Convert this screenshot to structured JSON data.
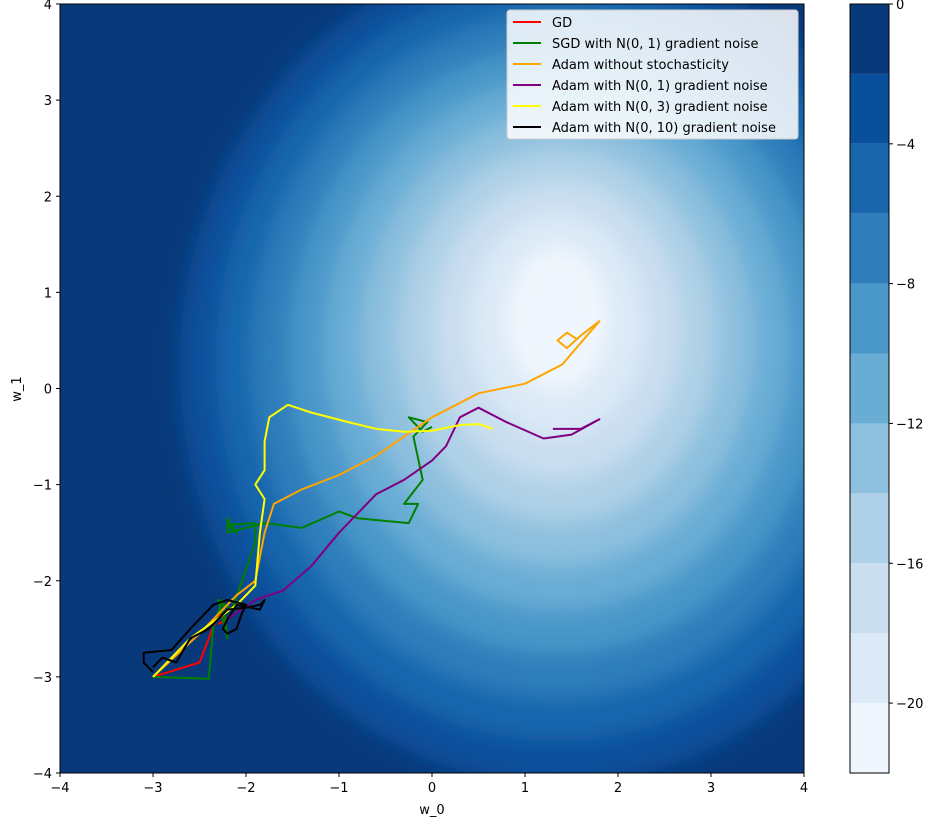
{
  "chart_data": {
    "type": "line",
    "xlabel": "w_0",
    "ylabel": "w_1",
    "xlim": [
      -4,
      4
    ],
    "ylim": [
      -4,
      4
    ],
    "x_ticks": [
      -4,
      -3,
      -2,
      -1,
      0,
      1,
      2,
      3,
      4
    ],
    "y_ticks": [
      -4,
      -3,
      -2,
      -1,
      0,
      1,
      2,
      3,
      4
    ],
    "x_tick_labels": [
      "−4",
      "−3",
      "−2",
      "−1",
      "0",
      "1",
      "2",
      "3",
      "4"
    ],
    "y_tick_labels": [
      "−4",
      "−3",
      "−2",
      "−1",
      "0",
      "1",
      "2",
      "3",
      "4"
    ],
    "background": {
      "type": "filled-contour",
      "colormap": "Blues_r",
      "levels": [
        -22,
        -20,
        -18,
        -16,
        -14,
        -12,
        -10,
        -8,
        -6,
        -4,
        -2,
        0
      ],
      "colors": [
        "#f0f6fd",
        "#dceaf7",
        "#cadef0",
        "#afd1e7",
        "#8dc0de",
        "#69add5",
        "#4a97c9",
        "#2f7ebb",
        "#1966ad",
        "#08509b",
        "#083a7b"
      ]
    },
    "colorbar": {
      "ticks": [
        0,
        -4,
        -8,
        -12,
        -16,
        -20
      ],
      "tick_labels": [
        "0",
        "−4",
        "−8",
        "−12",
        "−16",
        "−20"
      ],
      "range": [
        -22,
        0
      ]
    },
    "legend": {
      "position": "upper-right",
      "entries": [
        {
          "label": "GD",
          "color": "#ff0000"
        },
        {
          "label": "SGD with N(0, 1) gradient noise",
          "color": "#008000"
        },
        {
          "label": "Adam without stochasticity",
          "color": "#ffa500"
        },
        {
          "label": "Adam with N(0, 1) gradient noise",
          "color": "#800080"
        },
        {
          "label": "Adam with N(0, 3) gradient noise",
          "color": "#ffff00"
        },
        {
          "label": "Adam with N(0, 10) gradient noise",
          "color": "#000000"
        }
      ]
    },
    "series": [
      {
        "color": "#ff0000",
        "points": [
          [
            -3.0,
            -3.0
          ],
          [
            -2.5,
            -2.85
          ],
          [
            -2.3,
            -2.35
          ],
          [
            -2.2,
            -2.4
          ],
          [
            -2.3,
            -2.45
          ]
        ]
      },
      {
        "color": "#008000",
        "points": [
          [
            -3.0,
            -3.0
          ],
          [
            -2.4,
            -3.02
          ],
          [
            -2.35,
            -2.45
          ],
          [
            -2.25,
            -2.2
          ],
          [
            -2.2,
            -2.6
          ],
          [
            -2.3,
            -2.2
          ],
          [
            -2.15,
            -2.3
          ],
          [
            -1.9,
            -1.6
          ],
          [
            -1.9,
            -1.4
          ],
          [
            -2.2,
            -1.42
          ],
          [
            -2.1,
            -1.5
          ],
          [
            -2.2,
            -1.35
          ],
          [
            -2.2,
            -1.5
          ],
          [
            -1.8,
            -1.4
          ],
          [
            -1.4,
            -1.45
          ],
          [
            -1.0,
            -1.28
          ],
          [
            -0.8,
            -1.35
          ],
          [
            -0.25,
            -1.4
          ],
          [
            -0.15,
            -1.2
          ],
          [
            -0.3,
            -1.2
          ],
          [
            -0.1,
            -0.95
          ],
          [
            -0.2,
            -0.5
          ],
          [
            -0.05,
            -0.35
          ],
          [
            -0.25,
            -0.3
          ],
          [
            -0.1,
            -0.45
          ],
          [
            0.0,
            -0.4
          ]
        ]
      },
      {
        "color": "#ffa500",
        "points": [
          [
            -3.0,
            -3.0
          ],
          [
            -2.5,
            -2.55
          ],
          [
            -2.1,
            -2.15
          ],
          [
            -1.9,
            -2.0
          ],
          [
            -1.8,
            -1.5
          ],
          [
            -1.7,
            -1.2
          ],
          [
            -1.4,
            -1.05
          ],
          [
            -1.0,
            -0.9
          ],
          [
            -0.6,
            -0.7
          ],
          [
            -0.3,
            -0.5
          ],
          [
            0.0,
            -0.3
          ],
          [
            0.5,
            -0.05
          ],
          [
            1.0,
            0.05
          ],
          [
            1.4,
            0.25
          ],
          [
            1.8,
            0.7
          ],
          [
            1.6,
            0.55
          ],
          [
            1.45,
            0.42
          ],
          [
            1.35,
            0.5
          ],
          [
            1.45,
            0.58
          ],
          [
            1.55,
            0.52
          ]
        ]
      },
      {
        "color": "#800080",
        "points": [
          [
            -2.2,
            -2.4
          ],
          [
            -1.9,
            -2.2
          ],
          [
            -1.6,
            -2.1
          ],
          [
            -1.3,
            -1.85
          ],
          [
            -1.0,
            -1.5
          ],
          [
            -0.6,
            -1.1
          ],
          [
            -0.3,
            -0.95
          ],
          [
            0.0,
            -0.75
          ],
          [
            0.15,
            -0.6
          ],
          [
            0.3,
            -0.3
          ],
          [
            0.5,
            -0.2
          ],
          [
            0.8,
            -0.35
          ],
          [
            1.2,
            -0.52
          ],
          [
            1.5,
            -0.48
          ],
          [
            1.8,
            -0.32
          ],
          [
            1.6,
            -0.42
          ],
          [
            1.4,
            -0.42
          ],
          [
            1.3,
            -0.42
          ]
        ]
      },
      {
        "color": "#ffff00",
        "points": [
          [
            -3.0,
            -3.0
          ],
          [
            -2.6,
            -2.6
          ],
          [
            -2.1,
            -2.25
          ],
          [
            -1.9,
            -2.05
          ],
          [
            -1.85,
            -1.5
          ],
          [
            -1.8,
            -1.15
          ],
          [
            -1.9,
            -1.0
          ],
          [
            -1.8,
            -0.85
          ],
          [
            -1.8,
            -0.55
          ],
          [
            -1.75,
            -0.3
          ],
          [
            -1.55,
            -0.17
          ],
          [
            -1.3,
            -0.25
          ],
          [
            -0.9,
            -0.35
          ],
          [
            -0.6,
            -0.42
          ],
          [
            -0.3,
            -0.45
          ],
          [
            0.0,
            -0.44
          ],
          [
            0.3,
            -0.38
          ],
          [
            0.5,
            -0.37
          ],
          [
            0.6,
            -0.4
          ],
          [
            0.65,
            -0.42
          ]
        ]
      },
      {
        "color": "#000000",
        "points": [
          [
            -3.0,
            -2.9
          ],
          [
            -2.9,
            -2.8
          ],
          [
            -2.75,
            -2.85
          ],
          [
            -2.6,
            -2.6
          ],
          [
            -2.4,
            -2.5
          ],
          [
            -2.3,
            -2.4
          ],
          [
            -2.2,
            -2.3
          ],
          [
            -2.0,
            -2.28
          ],
          [
            -1.85,
            -2.25
          ],
          [
            -1.8,
            -2.2
          ],
          [
            -1.85,
            -2.3
          ],
          [
            -2.1,
            -2.25
          ],
          [
            -2.2,
            -2.4
          ],
          [
            -2.25,
            -2.5
          ],
          [
            -2.2,
            -2.55
          ],
          [
            -2.1,
            -2.5
          ],
          [
            -2.05,
            -2.35
          ],
          [
            -2.0,
            -2.25
          ],
          [
            -2.2,
            -2.2
          ],
          [
            -2.35,
            -2.25
          ],
          [
            -2.5,
            -2.4
          ],
          [
            -2.6,
            -2.5
          ],
          [
            -2.8,
            -2.72
          ],
          [
            -3.1,
            -2.75
          ],
          [
            -3.1,
            -2.85
          ],
          [
            -3.0,
            -2.95
          ]
        ]
      }
    ]
  }
}
